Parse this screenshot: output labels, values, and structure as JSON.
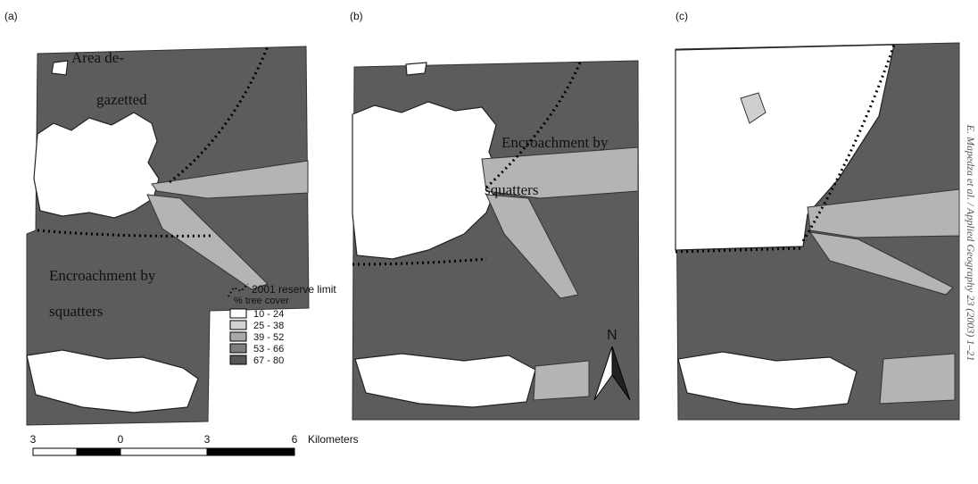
{
  "panels": [
    {
      "label": "(a)",
      "annotations": [
        "Area de-",
        "gazetted",
        "Encroachment by",
        "squatters"
      ]
    },
    {
      "label": "(b)",
      "annotations": [
        "Encroachment by",
        "squatters"
      ]
    },
    {
      "label": "(c)"
    }
  ],
  "legend": {
    "reserve_limit": "2001 reserve limit",
    "title": "% tree cover",
    "classes": [
      {
        "label": "10 - 24",
        "color": "#ffffff"
      },
      {
        "label": "25 - 38",
        "color": "#d2d2d2"
      },
      {
        "label": "39 - 52",
        "color": "#a8a8a8"
      },
      {
        "label": "53 - 66",
        "color": "#7e7e7e"
      },
      {
        "label": "67 - 80",
        "color": "#575757"
      }
    ]
  },
  "north": "N",
  "scale_bar": {
    "labels": [
      "3",
      "0",
      "3",
      "6"
    ],
    "unit": "Kilometers"
  },
  "citation": "E. Mapedza et al. / Applied Geography 23 (2003) 1–21"
}
